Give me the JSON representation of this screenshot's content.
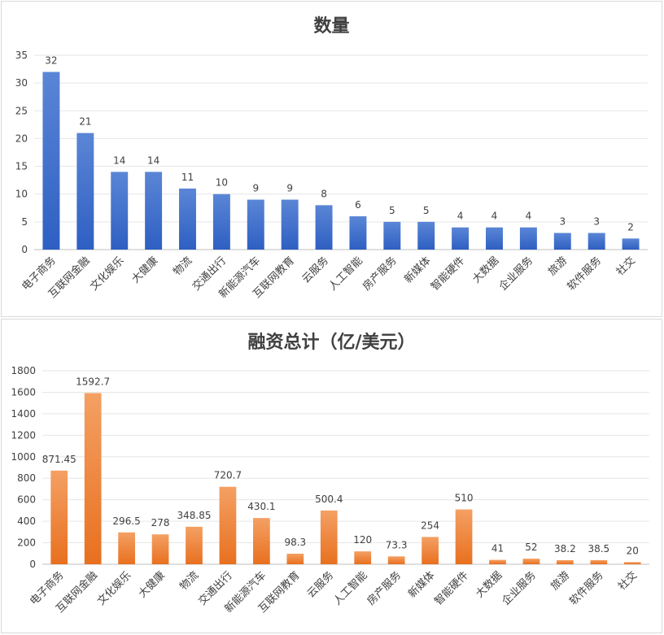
{
  "charts": [
    {
      "title": "数量",
      "chart_data": {
        "type": "bar",
        "title": "数量",
        "categories": [
          "电子商务",
          "互联网金融",
          "文化娱乐",
          "大健康",
          "物流",
          "交通出行",
          "新能源汽车",
          "互联网教育",
          "云服务",
          "人工智能",
          "房产服务",
          "新媒体",
          "智能硬件",
          "大数据",
          "企业服务",
          "旅游",
          "软件服务",
          "社交"
        ],
        "values": [
          32,
          21,
          14,
          14,
          11,
          10,
          9,
          9,
          8,
          6,
          5,
          5,
          4,
          4,
          4,
          3,
          3,
          2
        ],
        "labels": [
          "32",
          "21",
          "14",
          "14",
          "11",
          "10",
          "9",
          "9",
          "8",
          "6",
          "5",
          "5",
          "4",
          "4",
          "4",
          "3",
          "3",
          "2"
        ],
        "ylim": [
          0,
          35
        ],
        "yticks": [
          0,
          5,
          10,
          15,
          20,
          25,
          30,
          35
        ],
        "grid": true,
        "colors": {
          "top": "#5b86d6",
          "bottom": "#2e5fc2"
        }
      }
    },
    {
      "title": "融资总计（亿/美元）",
      "chart_data": {
        "type": "bar",
        "title": "融资总计（亿/美元）",
        "categories": [
          "电子商务",
          "互联网金融",
          "文化娱乐",
          "大健康",
          "物流",
          "交通出行",
          "新能源汽车",
          "互联网教育",
          "云服务",
          "人工智能",
          "房产服务",
          "新媒体",
          "智能硬件",
          "大数据",
          "企业服务",
          "旅游",
          "软件服务",
          "社交"
        ],
        "values": [
          871.45,
          1592.7,
          296.5,
          278,
          348.85,
          720.7,
          430.1,
          98.3,
          500.4,
          120,
          73.3,
          254,
          510,
          41,
          52,
          38.2,
          38.5,
          20
        ],
        "labels": [
          "871.45",
          "1592.7",
          "296.5",
          "278",
          "348.85",
          "720.7",
          "430.1",
          "98.3",
          "500.4",
          "120",
          "73.3",
          "254",
          "510",
          "41",
          "52",
          "38.2",
          "38.5",
          "20"
        ],
        "ylim": [
          0,
          1800
        ],
        "yticks": [
          0,
          200,
          400,
          600,
          800,
          1000,
          1200,
          1400,
          1600,
          1800
        ],
        "grid": true,
        "colors": {
          "top": "#f4a064",
          "bottom": "#e8701f"
        }
      }
    }
  ]
}
